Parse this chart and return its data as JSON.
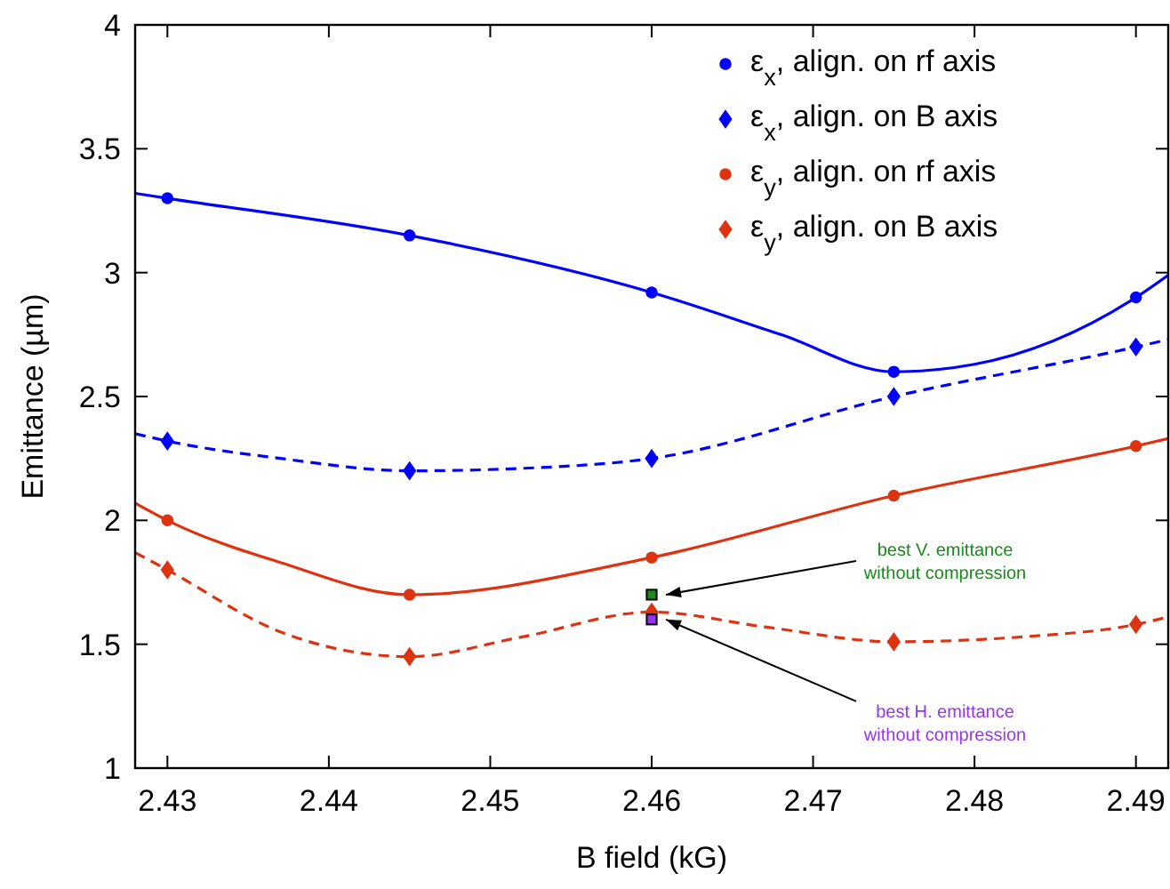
{
  "chart_data": {
    "type": "line",
    "xlabel": "B field (kG)",
    "ylabel": "Emittance (µm)",
    "xlim": [
      2.428,
      2.492
    ],
    "xticks": [
      2.43,
      2.44,
      2.45,
      2.46,
      2.47,
      2.48,
      2.49
    ],
    "ylim": [
      1,
      4
    ],
    "yticks": [
      1,
      1.5,
      2,
      2.5,
      3,
      3.5,
      4
    ],
    "grid": false,
    "legend": "top right",
    "series": [
      {
        "type": "scatter",
        "name": "ε$_{x}$, align. on rf axis",
        "color": "#0000ff",
        "marker": "circle",
        "x": [
          2.43,
          2.445,
          2.46,
          2.475,
          2.49
        ],
        "values": [
          3.3,
          3.15,
          2.92,
          2.6,
          2.9
        ]
      },
      {
        "type": "scatter",
        "name": "ε$_{x}$, align. on B axis",
        "color": "#0000ff",
        "marker": "diamond",
        "x": [
          2.43,
          2.445,
          2.46,
          2.475,
          2.49
        ],
        "values": [
          2.32,
          2.2,
          2.25,
          2.5,
          2.7
        ]
      },
      {
        "type": "scatter",
        "name": "ε$_{y}$, align. on rf axis",
        "color": "#dd3311",
        "marker": "circle",
        "x": [
          2.43,
          2.445,
          2.46,
          2.475,
          2.49
        ],
        "values": [
          2.0,
          1.7,
          1.85,
          2.1,
          2.3
        ]
      },
      {
        "type": "scatter",
        "name": "ε$_{y}$, align. on B axis",
        "color": "#dd3311",
        "marker": "diamond",
        "x": [
          2.43,
          2.445,
          2.46,
          2.475,
          2.49
        ],
        "values": [
          1.8,
          1.45,
          1.63,
          1.51,
          1.58
        ]
      },
      {
        "color": "#0000ff",
        "line_style": "solid",
        "marker": "none",
        "x": [
          2.428,
          2.43,
          2.445,
          2.46,
          2.468,
          2.475,
          2.48,
          2.49,
          2.492
        ],
        "values": [
          3.32,
          3.3,
          3.15,
          2.92,
          2.75,
          2.6,
          2.63,
          2.9,
          2.99
        ]
      },
      {
        "color": "#0000ff",
        "line_style": "dashed",
        "marker": "none",
        "x": [
          2.428,
          2.43,
          2.437,
          2.445,
          2.452,
          2.46,
          2.475,
          2.49,
          2.492
        ],
        "values": [
          2.35,
          2.32,
          2.25,
          2.2,
          2.21,
          2.25,
          2.5,
          2.7,
          2.73
        ]
      },
      {
        "color": "#dd3311",
        "line_style": "solid",
        "marker": "none",
        "x": [
          2.428,
          2.43,
          2.437,
          2.445,
          2.46,
          2.475,
          2.49,
          2.492
        ],
        "values": [
          2.07,
          2.0,
          1.83,
          1.7,
          1.85,
          2.1,
          2.3,
          2.33
        ]
      },
      {
        "color": "#dd3311",
        "line_style": "dashed",
        "marker": "none",
        "x": [
          2.428,
          2.43,
          2.437,
          2.445,
          2.452,
          2.46,
          2.467,
          2.475,
          2.483,
          2.49,
          2.492
        ],
        "values": [
          1.87,
          1.8,
          1.55,
          1.45,
          1.53,
          1.63,
          1.57,
          1.51,
          1.53,
          1.58,
          1.61
        ]
      },
      {
        "type": "scatter",
        "color": "#1a8a1a",
        "marker": "square",
        "x": [
          2.46
        ],
        "values": [
          1.7
        ]
      },
      {
        "type": "scatter",
        "color": "#9933ee",
        "marker": "square",
        "x": [
          2.46
        ],
        "values": [
          1.6
        ]
      }
    ],
    "annotations": [
      {
        "text": "best V. emittance\nwithout compression",
        "x": 2.46,
        "y": 1.7
      },
      {
        "text": "best H. emittance\nwithout compression",
        "x": 2.46,
        "y": 1.6
      }
    ]
  }
}
